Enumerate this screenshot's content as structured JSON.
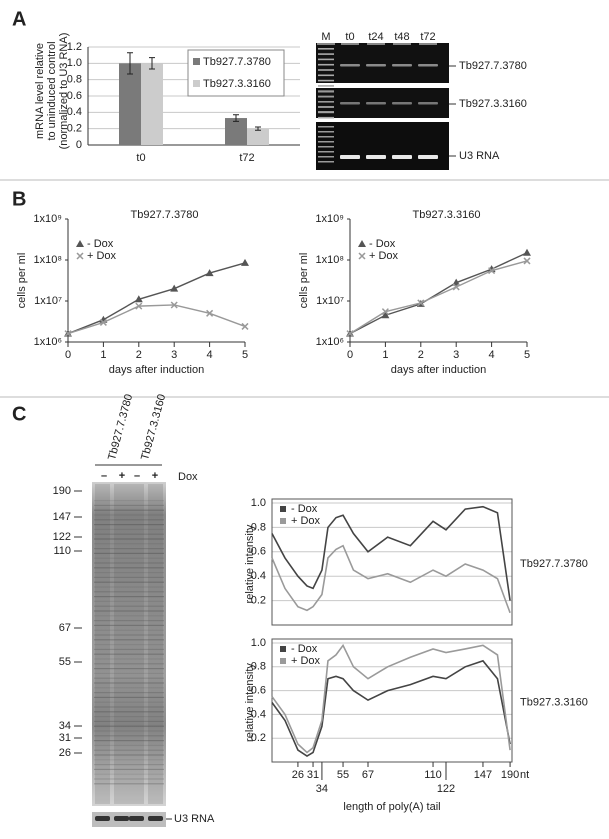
{
  "panels": [
    "A",
    "B",
    "C"
  ],
  "gel_a": {
    "lanes": [
      "M",
      "t0",
      "t24",
      "t48",
      "t72"
    ],
    "bands": [
      "Tb927.7.3780",
      "Tb927.3.3160",
      "U3 RNA"
    ]
  },
  "gel_c": {
    "lanes": [
      "Tb927.7.3780",
      "Tb927.3.3160"
    ],
    "treatment": "Dox",
    "signs": [
      "–",
      "+",
      "–",
      "+"
    ],
    "markers": [
      "190",
      "147",
      "122",
      "110",
      "67",
      "55",
      "34",
      "31",
      "26"
    ],
    "loading": "U3 RNA"
  },
  "chart_data": [
    {
      "type": "bar",
      "ylabel": [
        "mRNA level relative",
        "to uninduced control",
        "(normalized to U3 RNA)"
      ],
      "categories": [
        "t0",
        "t72"
      ],
      "series": [
        {
          "name": "Tb927.7.3780",
          "color": "#7a7a7a",
          "values": [
            1.0,
            0.33
          ],
          "errors": [
            0.13,
            0.04
          ]
        },
        {
          "name": "Tb927.3.3160",
          "color": "#cccccc",
          "values": [
            1.0,
            0.2
          ],
          "errors": [
            0.07,
            0.02
          ]
        }
      ],
      "ylim": [
        0,
        1.2
      ],
      "yticks": [
        0,
        0.2,
        0.4,
        0.6,
        0.8,
        {
          "value": 1,
          "label": "1.0"
        },
        1.2
      ],
      "grid": true,
      "legend": "top-right"
    },
    {
      "type": "line",
      "title": "Tb927.7.3780",
      "xlabel": "days after induction",
      "ylabel": "cells per ml",
      "x": [
        0,
        1,
        2,
        3,
        4,
        5
      ],
      "series": [
        {
          "name": "- Dox",
          "color": "#555555",
          "marker": "triangle",
          "values": [
            1600000,
            3500000,
            11000000,
            20000000,
            48000000,
            85000000
          ]
        },
        {
          "name": "+ Dox",
          "color": "#999999",
          "marker": "x",
          "values": [
            1600000,
            3000000,
            7500000,
            8000000,
            5000000,
            2400000
          ]
        }
      ],
      "xlim": [
        0,
        5
      ],
      "xticks": [
        0,
        1,
        2,
        3,
        4,
        5
      ],
      "ylim": [
        1000000,
        1000000000
      ],
      "yscale": "log",
      "yticks": [
        {
          "value": 1000000,
          "label": "1x10⁶"
        },
        {
          "value": 10000000,
          "label": "1x10⁷"
        },
        {
          "value": 100000000,
          "label": "1x10⁸"
        },
        {
          "value": 1000000000,
          "label": "1x10⁹"
        }
      ],
      "legend": "top-left"
    },
    {
      "type": "line",
      "title": "Tb927.3.3160",
      "xlabel": "days after induction",
      "ylabel": "cells per ml",
      "x": [
        0,
        1,
        2,
        3,
        4,
        5
      ],
      "series": [
        {
          "name": "- Dox",
          "color": "#555555",
          "marker": "triangle",
          "values": [
            1600000,
            4500000,
            8500000,
            28000000,
            60000000,
            150000000
          ]
        },
        {
          "name": "+ Dox",
          "color": "#999999",
          "marker": "x",
          "values": [
            1600000,
            5500000,
            9000000,
            22000000,
            55000000,
            95000000
          ]
        }
      ],
      "xlim": [
        0,
        5
      ],
      "xticks": [
        0,
        1,
        2,
        3,
        4,
        5
      ],
      "ylim": [
        1000000,
        1000000000
      ],
      "yscale": "log",
      "yticks": [
        {
          "value": 1000000,
          "label": "1x10⁶"
        },
        {
          "value": 10000000,
          "label": "1x10⁷"
        },
        {
          "value": 100000000,
          "label": "1x10⁸"
        },
        {
          "value": 1000000000,
          "label": "1x10⁹"
        }
      ],
      "legend": "top-left"
    },
    {
      "type": "line",
      "ylabel": "relative intensity",
      "label": "Tb927.7.3780",
      "x": [
        20,
        23,
        26,
        29,
        31,
        34,
        40,
        48,
        55,
        60,
        67,
        80,
        95,
        110,
        122,
        135,
        147,
        170,
        190
      ],
      "series": [
        {
          "name": "- Dox",
          "color": "#444444",
          "values": [
            0.75,
            0.55,
            0.4,
            0.32,
            0.3,
            0.45,
            0.8,
            0.88,
            0.9,
            0.75,
            0.6,
            0.72,
            0.65,
            0.85,
            0.78,
            0.95,
            0.97,
            0.92,
            0.2
          ]
        },
        {
          "name": "+ Dox",
          "color": "#9a9a9a",
          "values": [
            0.55,
            0.3,
            0.15,
            0.12,
            0.15,
            0.25,
            0.55,
            0.62,
            0.65,
            0.45,
            0.38,
            0.42,
            0.35,
            0.45,
            0.4,
            0.5,
            0.45,
            0.38,
            0.1
          ]
        }
      ],
      "xlim": [
        20,
        190
      ],
      "ylim": [
        0,
        1
      ],
      "yticks": [
        0.2,
        0.4,
        0.6,
        0.8,
        {
          "value": 1,
          "label": "1.0"
        }
      ],
      "grid": true,
      "legend": "top-left"
    },
    {
      "type": "line",
      "ylabel": "relative intensity",
      "label": "Tb927.3.3160",
      "xlabel": "length of poly(A) tail",
      "xunit": "nt",
      "x": [
        20,
        23,
        26,
        29,
        31,
        34,
        40,
        48,
        55,
        60,
        67,
        80,
        95,
        110,
        122,
        135,
        147,
        170,
        190
      ],
      "series": [
        {
          "name": "- Dox",
          "color": "#444444",
          "values": [
            0.5,
            0.35,
            0.1,
            0.05,
            0.08,
            0.3,
            0.7,
            0.72,
            0.7,
            0.6,
            0.52,
            0.6,
            0.65,
            0.72,
            0.7,
            0.8,
            0.85,
            0.7,
            0.15
          ]
        },
        {
          "name": "+ Dox",
          "color": "#9a9a9a",
          "values": [
            0.55,
            0.4,
            0.15,
            0.08,
            0.12,
            0.35,
            0.85,
            0.9,
            0.98,
            0.8,
            0.7,
            0.8,
            0.88,
            0.95,
            0.92,
            0.95,
            0.98,
            0.9,
            0.1
          ]
        }
      ],
      "xlim": [
        20,
        190
      ],
      "xticks": [
        26,
        31,
        34,
        55,
        67,
        110,
        122,
        147,
        190
      ],
      "ylim": [
        0,
        1
      ],
      "yticks": [
        0.2,
        0.4,
        0.6,
        0.8,
        {
          "value": 1,
          "label": "1.0"
        }
      ],
      "grid": true,
      "legend": "top-left"
    }
  ]
}
